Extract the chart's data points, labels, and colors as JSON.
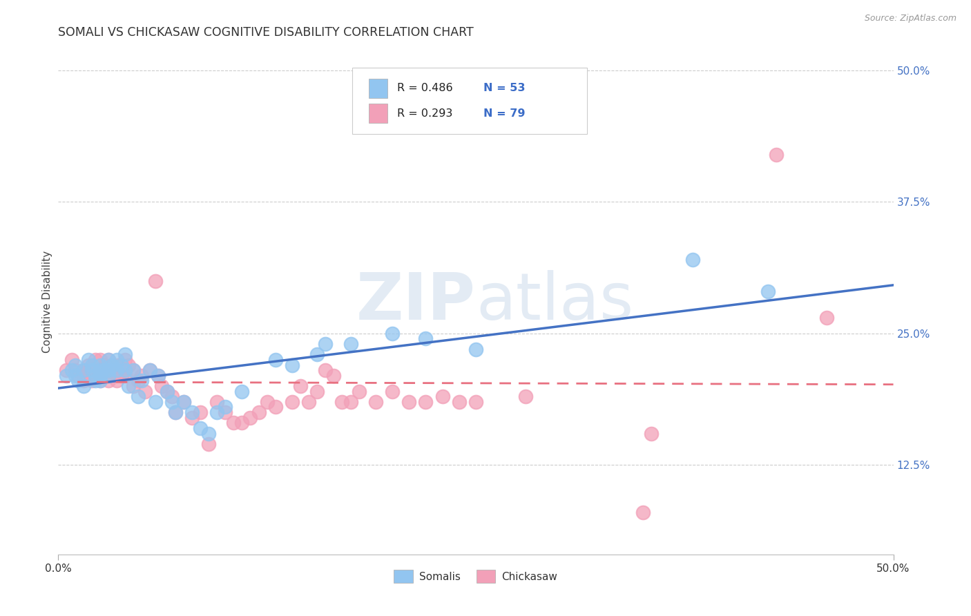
{
  "title": "SOMALI VS CHICKASAW COGNITIVE DISABILITY CORRELATION CHART",
  "source": "Source: ZipAtlas.com",
  "ylabel": "Cognitive Disability",
  "right_ytick_labels": [
    "12.5%",
    "25.0%",
    "37.5%",
    "50.0%"
  ],
  "right_ytick_vals": [
    0.125,
    0.25,
    0.375,
    0.5
  ],
  "xmin": 0.0,
  "xmax": 0.5,
  "ymin": 0.04,
  "ymax": 0.52,
  "somali_color": "#92C5F0",
  "chickasaw_color": "#F2A0B8",
  "somali_line_color": "#4472C4",
  "chickasaw_line_color": "#E87080",
  "somali_R": 0.486,
  "somali_N": 53,
  "chickasaw_R": 0.293,
  "chickasaw_N": 79,
  "legend_N_color": "#3B6CC7",
  "watermark_color": "#C8D8EA",
  "somali_scatter": [
    [
      0.005,
      0.21
    ],
    [
      0.008,
      0.215
    ],
    [
      0.01,
      0.22
    ],
    [
      0.01,
      0.21
    ],
    [
      0.012,
      0.205
    ],
    [
      0.015,
      0.215
    ],
    [
      0.015,
      0.2
    ],
    [
      0.018,
      0.225
    ],
    [
      0.02,
      0.22
    ],
    [
      0.02,
      0.215
    ],
    [
      0.022,
      0.21
    ],
    [
      0.022,
      0.205
    ],
    [
      0.025,
      0.22
    ],
    [
      0.025,
      0.215
    ],
    [
      0.025,
      0.21
    ],
    [
      0.025,
      0.205
    ],
    [
      0.028,
      0.215
    ],
    [
      0.03,
      0.225
    ],
    [
      0.03,
      0.215
    ],
    [
      0.03,
      0.21
    ],
    [
      0.032,
      0.22
    ],
    [
      0.035,
      0.225
    ],
    [
      0.035,
      0.215
    ],
    [
      0.038,
      0.22
    ],
    [
      0.04,
      0.23
    ],
    [
      0.04,
      0.215
    ],
    [
      0.042,
      0.2
    ],
    [
      0.045,
      0.215
    ],
    [
      0.048,
      0.19
    ],
    [
      0.05,
      0.205
    ],
    [
      0.055,
      0.215
    ],
    [
      0.058,
      0.185
    ],
    [
      0.06,
      0.21
    ],
    [
      0.065,
      0.195
    ],
    [
      0.068,
      0.185
    ],
    [
      0.07,
      0.175
    ],
    [
      0.075,
      0.185
    ],
    [
      0.08,
      0.175
    ],
    [
      0.085,
      0.16
    ],
    [
      0.09,
      0.155
    ],
    [
      0.095,
      0.175
    ],
    [
      0.1,
      0.18
    ],
    [
      0.11,
      0.195
    ],
    [
      0.13,
      0.225
    ],
    [
      0.14,
      0.22
    ],
    [
      0.155,
      0.23
    ],
    [
      0.16,
      0.24
    ],
    [
      0.175,
      0.24
    ],
    [
      0.2,
      0.25
    ],
    [
      0.22,
      0.245
    ],
    [
      0.25,
      0.235
    ],
    [
      0.38,
      0.32
    ],
    [
      0.425,
      0.29
    ]
  ],
  "chickasaw_scatter": [
    [
      0.005,
      0.215
    ],
    [
      0.008,
      0.225
    ],
    [
      0.01,
      0.215
    ],
    [
      0.012,
      0.21
    ],
    [
      0.015,
      0.215
    ],
    [
      0.015,
      0.205
    ],
    [
      0.018,
      0.22
    ],
    [
      0.018,
      0.215
    ],
    [
      0.02,
      0.215
    ],
    [
      0.02,
      0.21
    ],
    [
      0.02,
      0.205
    ],
    [
      0.022,
      0.225
    ],
    [
      0.022,
      0.215
    ],
    [
      0.022,
      0.21
    ],
    [
      0.025,
      0.225
    ],
    [
      0.025,
      0.215
    ],
    [
      0.025,
      0.21
    ],
    [
      0.025,
      0.205
    ],
    [
      0.028,
      0.22
    ],
    [
      0.028,
      0.215
    ],
    [
      0.03,
      0.225
    ],
    [
      0.03,
      0.215
    ],
    [
      0.03,
      0.21
    ],
    [
      0.03,
      0.205
    ],
    [
      0.032,
      0.22
    ],
    [
      0.032,
      0.215
    ],
    [
      0.035,
      0.22
    ],
    [
      0.035,
      0.215
    ],
    [
      0.035,
      0.205
    ],
    [
      0.038,
      0.215
    ],
    [
      0.038,
      0.21
    ],
    [
      0.04,
      0.225
    ],
    [
      0.04,
      0.215
    ],
    [
      0.04,
      0.21
    ],
    [
      0.042,
      0.22
    ],
    [
      0.045,
      0.215
    ],
    [
      0.045,
      0.2
    ],
    [
      0.048,
      0.205
    ],
    [
      0.05,
      0.21
    ],
    [
      0.052,
      0.195
    ],
    [
      0.055,
      0.215
    ],
    [
      0.058,
      0.3
    ],
    [
      0.06,
      0.21
    ],
    [
      0.062,
      0.2
    ],
    [
      0.065,
      0.195
    ],
    [
      0.068,
      0.19
    ],
    [
      0.07,
      0.175
    ],
    [
      0.075,
      0.185
    ],
    [
      0.08,
      0.17
    ],
    [
      0.085,
      0.175
    ],
    [
      0.09,
      0.145
    ],
    [
      0.095,
      0.185
    ],
    [
      0.1,
      0.175
    ],
    [
      0.105,
      0.165
    ],
    [
      0.11,
      0.165
    ],
    [
      0.115,
      0.17
    ],
    [
      0.12,
      0.175
    ],
    [
      0.125,
      0.185
    ],
    [
      0.13,
      0.18
    ],
    [
      0.14,
      0.185
    ],
    [
      0.145,
      0.2
    ],
    [
      0.15,
      0.185
    ],
    [
      0.155,
      0.195
    ],
    [
      0.16,
      0.215
    ],
    [
      0.165,
      0.21
    ],
    [
      0.17,
      0.185
    ],
    [
      0.175,
      0.185
    ],
    [
      0.18,
      0.195
    ],
    [
      0.19,
      0.185
    ],
    [
      0.2,
      0.195
    ],
    [
      0.21,
      0.185
    ],
    [
      0.22,
      0.185
    ],
    [
      0.23,
      0.19
    ],
    [
      0.24,
      0.185
    ],
    [
      0.25,
      0.185
    ],
    [
      0.28,
      0.19
    ],
    [
      0.35,
      0.08
    ],
    [
      0.355,
      0.155
    ],
    [
      0.43,
      0.42
    ],
    [
      0.46,
      0.265
    ]
  ]
}
